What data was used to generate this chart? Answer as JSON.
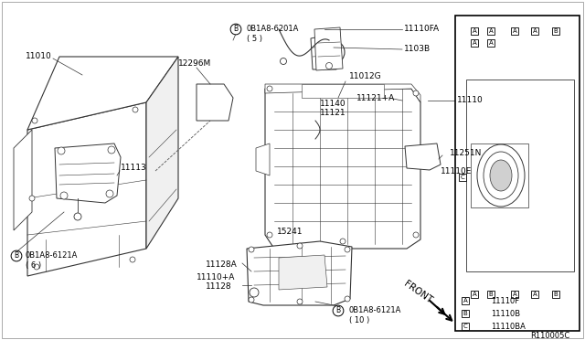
{
  "bg_color": "#ffffff",
  "fig_width": 6.4,
  "fig_height": 3.72,
  "dpi": 100,
  "diagram_ref": "R110005C",
  "lc": "#333333",
  "tc": "#000000",
  "legend_items": [
    {
      "key": "A",
      "label": "11110F"
    },
    {
      "key": "B",
      "label": "11110B"
    },
    {
      "key": "C",
      "label": "11110BA"
    }
  ]
}
